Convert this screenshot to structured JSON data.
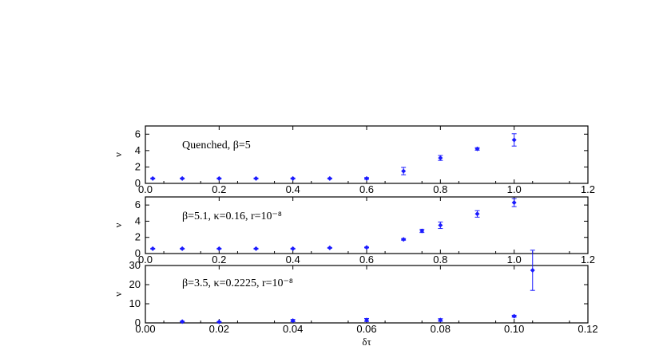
{
  "colors": {
    "marker": "#1a1aff",
    "axis": "#000000"
  },
  "chart_data": [
    {
      "type": "scatter",
      "annotation_html": "Quenched, β=5",
      "annotation": "Quenched, β=5",
      "ylabel": "ν",
      "xlabel": "",
      "xlim": [
        0,
        1.2
      ],
      "ylim": [
        0,
        7
      ],
      "xticks": [
        "0.0",
        "0.2",
        "0.4",
        "0.6",
        "0.8",
        "1.0",
        "1.2"
      ],
      "yticks": [
        "0",
        "2",
        "4",
        "6"
      ],
      "series": [
        {
          "x": [
            0.02,
            0.1,
            0.2,
            0.3,
            0.4,
            0.5,
            0.6,
            0.7,
            0.8,
            0.9,
            1.0
          ],
          "y": [
            0.6,
            0.6,
            0.6,
            0.6,
            0.6,
            0.6,
            0.6,
            1.5,
            3.1,
            4.2,
            5.3
          ],
          "err": [
            0.05,
            0.05,
            0.05,
            0.05,
            0.05,
            0.05,
            0.1,
            0.45,
            0.3,
            0.15,
            0.75
          ]
        }
      ]
    },
    {
      "type": "scatter",
      "annotation": "β=5.1, κ=0.16, r=10⁻⁸",
      "ylabel": "ν",
      "xlabel": "",
      "xlim": [
        0,
        1.2
      ],
      "ylim": [
        0,
        7
      ],
      "xticks": [
        "0.0",
        "0.2",
        "0.4",
        "0.6",
        "0.8",
        "1.0",
        "1.2"
      ],
      "yticks": [
        "0",
        "2",
        "4",
        "6"
      ],
      "series": [
        {
          "x": [
            0.02,
            0.1,
            0.2,
            0.3,
            0.4,
            0.5,
            0.6,
            0.7,
            0.75,
            0.8,
            0.9,
            1.0
          ],
          "y": [
            0.6,
            0.6,
            0.6,
            0.6,
            0.6,
            0.7,
            0.75,
            1.75,
            2.8,
            3.5,
            4.9,
            6.3
          ],
          "err": [
            0.05,
            0.05,
            0.05,
            0.05,
            0.05,
            0.05,
            0.05,
            0.1,
            0.2,
            0.4,
            0.4,
            0.5
          ]
        }
      ]
    },
    {
      "type": "scatter",
      "annotation": "β=3.5, κ=0.2225, r=10⁻⁸",
      "ylabel": "ν",
      "xlabel": "δτ",
      "xlim": [
        0,
        0.12
      ],
      "ylim": [
        0,
        30
      ],
      "xticks": [
        "0.00",
        "0.02",
        "0.04",
        "0.06",
        "0.08",
        "0.10",
        "0.12"
      ],
      "yticks": [
        "0",
        "10",
        "20",
        "30"
      ],
      "series": [
        {
          "x": [
            0.01,
            0.02,
            0.04,
            0.06,
            0.08,
            0.1,
            0.105
          ],
          "y": [
            0.7,
            0.5,
            1.2,
            1.5,
            1.5,
            3.5,
            27.5
          ],
          "err": [
            0.2,
            0.2,
            0.6,
            0.8,
            0.7,
            0.5,
            10.5
          ]
        }
      ]
    }
  ]
}
